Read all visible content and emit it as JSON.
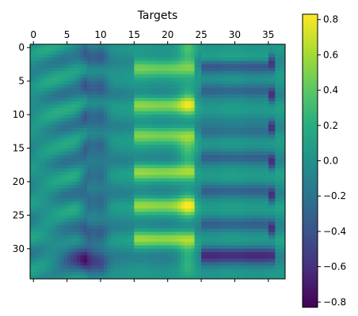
{
  "chart_data": [
    {
      "type": "heatmap",
      "title": "Targets",
      "xlabel": "",
      "ylabel": "",
      "x_axis_position": "top",
      "x_range": [
        -0.5,
        37.5
      ],
      "y_range": [
        34.5,
        -0.5
      ],
      "x_ticks": [
        0,
        5,
        10,
        15,
        20,
        25,
        30,
        35
      ],
      "y_ticks": [
        0,
        5,
        10,
        15,
        20,
        25,
        30
      ],
      "n_cols": 38,
      "n_rows": 35,
      "colormap": "viridis",
      "interpolation": "bicubic",
      "vmin": -0.83,
      "vmax": 0.83,
      "pattern": {
        "bright_bands_rows": [
          3,
          8.5,
          13,
          18.5,
          23.5,
          28.5
        ],
        "dark_bands_rows": [
          2.5,
          7,
          12,
          17,
          22,
          27,
          31
        ],
        "bright_band_x_range": [
          15,
          24
        ],
        "dark_band_x_range": [
          25,
          36
        ],
        "dark_columns": [
          8,
          10
        ],
        "bright_column": 23
      }
    },
    {
      "type": "colorbar",
      "ticks": [
        0.8,
        0.6,
        0.4,
        0.2,
        0.0,
        -0.2,
        -0.4,
        -0.6,
        -0.8
      ],
      "tick_labels": [
        "0.8",
        "0.6",
        "0.4",
        "0.2",
        "0.0",
        "−0.2",
        "−0.4",
        "−0.6",
        "−0.8"
      ],
      "range": [
        -0.83,
        0.83
      ]
    }
  ]
}
